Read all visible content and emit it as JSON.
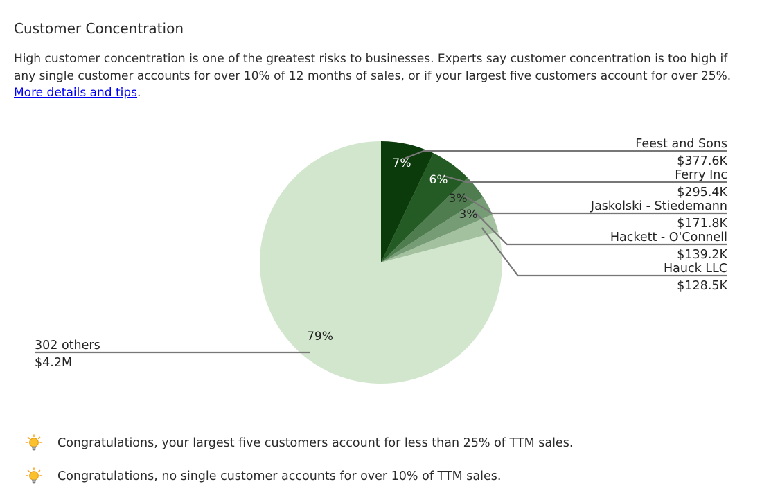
{
  "heading": "Customer Concentration",
  "description": {
    "text": "High customer concentration is one of the greatest risks to businesses. Experts say customer concentration is too high if any single customer accounts for over 10% of 12 months of sales, or if your largest five customers account for over 25%. ",
    "link_text": "More details and tips",
    "suffix": "."
  },
  "chart_data": {
    "type": "pie",
    "slices": [
      {
        "label": "Feest and Sons",
        "value_label": "$377.6K",
        "value": 377.6,
        "percent_label": "7%",
        "color": "#0b3a0b"
      },
      {
        "label": "Ferry Inc",
        "value_label": "$295.4K",
        "value": 295.4,
        "percent_label": "6%",
        "color": "#245a24"
      },
      {
        "label": "Jaskolski - Stiedemann",
        "value_label": "$171.8K",
        "value": 171.8,
        "percent_label": "3%",
        "color": "#4f7d4f"
      },
      {
        "label": "Hackett - O'Connell",
        "value_label": "$139.2K",
        "value": 139.2,
        "percent_label": "3%",
        "color": "#759c75"
      },
      {
        "label": "Hauck LLC",
        "value_label": "$128.5K",
        "value": 128.5,
        "percent_label": "",
        "color": "#a3c09f"
      },
      {
        "label": "302 others",
        "value_label": "$4.2M",
        "value": 4200,
        "percent_label": "79%",
        "color": "#d1e6cc"
      }
    ],
    "colors": {
      "leader": "#777777",
      "inner_label_dark": "#ffffff",
      "inner_label_light": "#222222"
    }
  },
  "tips": [
    {
      "icon": "lightbulb-icon",
      "text": "Congratulations, your largest five customers account for less than 25% of TTM sales."
    },
    {
      "icon": "lightbulb-icon",
      "text": "Congratulations, no single customer accounts for over 10% of TTM sales."
    }
  ]
}
